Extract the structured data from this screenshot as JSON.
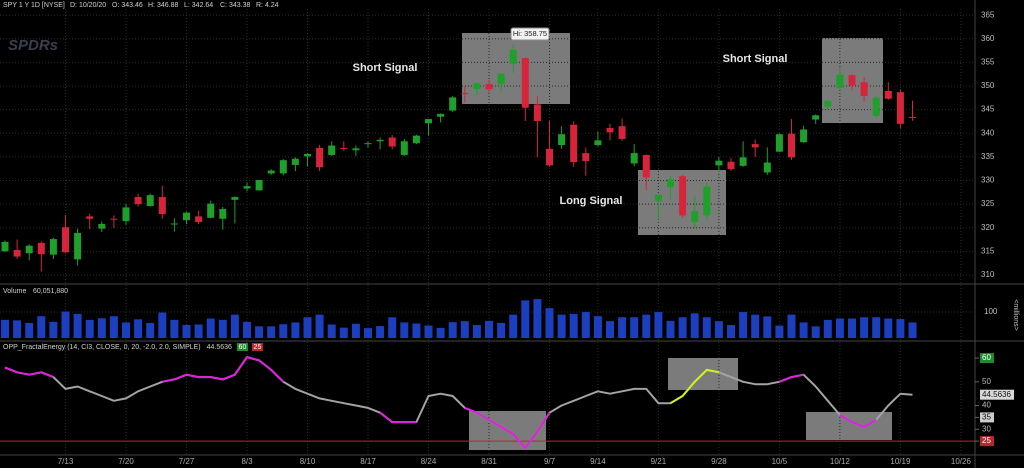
{
  "chart_data": [
    {
      "type": "candlestick",
      "title": "SPY 1 Y 1D [NYSE]",
      "readout": [
        "D: 10/20/20",
        "O: 343.46",
        "H: 346.88",
        "L: 342.64",
        "C: 343.38",
        "R: 4.24"
      ],
      "logo": "SPDRs",
      "up_color": "#1fa02a",
      "down_color": "#d8243a",
      "grid": true,
      "ylim": [
        308.3,
        366.3
      ],
      "yticks": [
        310,
        315,
        320,
        325,
        330,
        335,
        340,
        345,
        350,
        355,
        360,
        365
      ],
      "open": [
        315.0,
        315.3,
        314.6,
        316.8,
        314.3,
        320.1,
        313.3,
        322.4,
        319.8,
        321.9,
        321.4,
        326.5,
        324.6,
        326.5,
        320.9,
        321.6,
        322.4,
        322.1,
        321.9,
        325.9,
        328.3,
        327.9,
        331.5,
        331.5,
        333.3,
        335.1,
        336.9,
        335.4,
        336.9,
        336.4,
        337.9,
        338.3,
        339.1,
        335.4,
        337.9,
        342.1,
        343.5,
        344.8,
        348.5,
        349.4,
        350.4,
        350.4,
        354.7,
        355.9,
        346.1,
        336.7,
        337.5,
        341.8,
        335.8,
        337.5,
        341.1,
        341.5,
        333.6,
        335.4,
        325.7,
        328.6,
        330.9,
        321.2,
        322.6,
        333.2,
        333.97,
        333.1,
        337.7,
        331.7,
        336.1,
        339.9,
        338.1,
        342.9,
        345.6,
        349.6,
        352.3,
        350.8,
        343.7,
        348.96,
        348.7,
        343.46,
        null,
        null,
        null,
        null
      ],
      "high": [
        317.3,
        317.5,
        316.5,
        317.1,
        317.9,
        322.7,
        319.8,
        323.0,
        321.3,
        322.6,
        325.1,
        327.2,
        327.2,
        328.9,
        321.99,
        323.4,
        323.6,
        325.7,
        324.4,
        326.6,
        329.6,
        330.1,
        332.4,
        334.5,
        334.9,
        335.8,
        337.5,
        338.3,
        338.3,
        337.4,
        338.3,
        339.1,
        339.6,
        338.8,
        339.7,
        343.0,
        344.2,
        347.9,
        349.9,
        350.7,
        351.3,
        352.7,
        358.75,
        356.0,
        347.8,
        342.6,
        341.5,
        342.5,
        336.97,
        340.4,
        342.0,
        343.1,
        337.7,
        335.5,
        327.1,
        330.9,
        331.2,
        326.8,
        329.6,
        334.96,
        334.8,
        338.3,
        338.7,
        337.0,
        339.96,
        342.98,
        341.6,
        344.0,
        347.0,
        354.0,
        352.5,
        351.9,
        348.0,
        350.8,
        349.3,
        346.88,
        null,
        null,
        null,
        null
      ],
      "low": [
        314.9,
        313.4,
        313.1,
        310.7,
        313.4,
        314.6,
        312.0,
        319.7,
        319.1,
        319.9,
        320.6,
        324.5,
        324.5,
        321.9,
        319.2,
        320.8,
        320.8,
        322.0,
        319.6,
        320.9,
        327.7,
        327.9,
        331.2,
        331.1,
        332.0,
        332.9,
        332.0,
        335.2,
        336.3,
        335.2,
        336.9,
        336.6,
        336.6,
        335.2,
        337.7,
        339.5,
        342.3,
        344.5,
        346.5,
        348.1,
        348.6,
        348.7,
        352.8,
        342.6,
        334.9,
        332.9,
        336.7,
        332.9,
        331.0,
        337.2,
        338.5,
        338.4,
        333.0,
        327.97,
        321.7,
        325.9,
        322.1,
        319.8,
        321.6,
        331.6,
        332.0,
        332.9,
        335.0,
        331.2,
        336.0,
        334.4,
        337.98,
        341.99,
        344.9,
        349.1,
        349.1,
        346.7,
        343.1,
        347.1,
        341.0,
        342.64,
        null,
        null,
        null,
        null
      ],
      "close": [
        317.0,
        313.9,
        316.2,
        314.4,
        317.6,
        314.8,
        318.9,
        321.9,
        320.8,
        321.7,
        324.3,
        325.0,
        326.9,
        322.9,
        320.9,
        323.2,
        321.2,
        325.1,
        323.96,
        326.5,
        328.8,
        330.1,
        332.1,
        334.3,
        334.6,
        335.6,
        332.8,
        337.4,
        336.8,
        336.8,
        337.9,
        338.6,
        337.2,
        338.3,
        339.5,
        343.0,
        344.1,
        347.6,
        348.3,
        350.6,
        349.3,
        352.6,
        357.7,
        345.4,
        342.6,
        333.2,
        339.8,
        333.9,
        334.1,
        338.5,
        340.2,
        338.8,
        335.8,
        330.65,
        326.97,
        330.3,
        322.6,
        323.5,
        328.7,
        334.2,
        332.4,
        334.9,
        337.0,
        333.8,
        339.8,
        334.9,
        340.8,
        343.8,
        346.85,
        352.4,
        350.1,
        347.9,
        347.5,
        347.3,
        342.0,
        343.38,
        null,
        null,
        null,
        null
      ],
      "annotations": [
        "Short Signal",
        "Hi: 358.75",
        "Long Signal",
        "Short Signal"
      ]
    },
    {
      "type": "bar",
      "title": "Volume",
      "readout": "60,051,880",
      "y_unit_label": "<millions>",
      "color": "#1c3fbf",
      "ylim": [
        0,
        185
      ],
      "yticks": [
        100
      ],
      "values": [
        70,
        68,
        58,
        84,
        62,
        102,
        93,
        70,
        76,
        84,
        60,
        72,
        58,
        98,
        70,
        50,
        52,
        75,
        70,
        90,
        62,
        45,
        45,
        53,
        60,
        80,
        90,
        52,
        40,
        55,
        38,
        46,
        80,
        60,
        56,
        48,
        39,
        61,
        65,
        50,
        66,
        58,
        90,
        145,
        150,
        115,
        90,
        93,
        100,
        84,
        65,
        80,
        80,
        90,
        100,
        66,
        80,
        95,
        80,
        65,
        50,
        100,
        90,
        83,
        48,
        90,
        60,
        45,
        70,
        75,
        75,
        80,
        80,
        75,
        73,
        60.05188,
        null,
        null,
        null,
        null
      ]
    },
    {
      "type": "line",
      "title": "OPP_FractalEnergy (14, CI3, CLOSE, 0, 20, -2.0, 2.0, SIMPLE)",
      "readout": "44.5636",
      "level_tags": [
        {
          "text": "60",
          "color": "#1e8c2e"
        },
        {
          "text": "25",
          "color": "#b8262f"
        }
      ],
      "ylim": [
        20,
        63.4
      ],
      "yticks": [
        25,
        30,
        35,
        40,
        50,
        60
      ],
      "tick_box_colors": [
        "#b8262f",
        null,
        "#cccccc",
        null,
        null,
        "#1e8c2e"
      ],
      "reference_line": {
        "value": 25,
        "color": "#b8262f"
      },
      "categories": [
        null,
        null,
        null,
        null,
        null,
        "7/13",
        null,
        null,
        null,
        null,
        "7/20",
        null,
        null,
        null,
        null,
        "7/27",
        null,
        null,
        null,
        null,
        "8/3",
        null,
        null,
        null,
        null,
        "8/10",
        null,
        null,
        null,
        null,
        "8/17",
        null,
        null,
        null,
        null,
        "8/24",
        null,
        null,
        null,
        null,
        "8/31",
        null,
        null,
        null,
        null,
        "9/7",
        null,
        null,
        null,
        "9/14",
        null,
        null,
        null,
        null,
        "9/21",
        null,
        null,
        null,
        null,
        "9/28",
        null,
        null,
        null,
        null,
        "10/5",
        null,
        null,
        null,
        null,
        "10/12",
        null,
        null,
        null,
        null,
        "10/19",
        null,
        null,
        null,
        null,
        "10/26"
      ],
      "series": [
        {
          "color": "#a3a3a3",
          "values": [
            56,
            54,
            53,
            54,
            52,
            47,
            48,
            46,
            44,
            42,
            43,
            46,
            48,
            50,
            51,
            53,
            52,
            52,
            51,
            53,
            60.4,
            59,
            55,
            50,
            47,
            45,
            43,
            42,
            41,
            40,
            39,
            37,
            33,
            33,
            33,
            44,
            45,
            44,
            39,
            37,
            34,
            31,
            28,
            22,
            29,
            37,
            40,
            42,
            44,
            46,
            45,
            46,
            47,
            47,
            41,
            41,
            44,
            50,
            55,
            54,
            52,
            50,
            49,
            49,
            50,
            52,
            53,
            48,
            42,
            36,
            33,
            31,
            34,
            40,
            45,
            44.5636,
            null,
            null,
            null,
            null
          ]
        },
        {
          "color": "#e21fe0",
          "values": [
            56,
            54,
            53,
            54,
            52,
            null,
            null,
            null,
            null,
            null,
            null,
            null,
            null,
            50,
            51,
            53,
            52,
            52,
            51,
            53,
            60.4,
            59,
            55,
            50,
            null,
            null,
            null,
            null,
            null,
            null,
            null,
            37,
            33,
            33,
            33,
            null,
            null,
            null,
            39,
            37,
            34,
            31,
            28,
            22,
            29,
            37,
            null,
            null,
            null,
            null,
            null,
            null,
            null,
            null,
            null,
            null,
            null,
            null,
            null,
            null,
            null,
            null,
            null,
            null,
            50,
            52,
            53,
            null,
            null,
            36,
            33,
            31,
            34,
            null,
            null,
            null,
            null,
            null,
            null,
            null
          ]
        },
        {
          "color": "#d4f01c",
          "values": [
            null,
            null,
            null,
            null,
            null,
            null,
            null,
            null,
            null,
            null,
            null,
            null,
            null,
            null,
            null,
            null,
            null,
            null,
            null,
            null,
            null,
            null,
            null,
            null,
            null,
            null,
            null,
            null,
            null,
            null,
            null,
            null,
            null,
            null,
            null,
            null,
            null,
            null,
            null,
            null,
            null,
            null,
            null,
            null,
            null,
            null,
            null,
            null,
            null,
            null,
            null,
            null,
            null,
            null,
            null,
            41,
            44,
            50,
            55,
            54,
            null,
            null,
            null,
            null,
            null,
            null,
            null,
            null,
            null,
            null,
            null,
            null,
            null,
            null,
            null,
            null,
            null,
            null,
            null,
            null
          ]
        }
      ]
    }
  ]
}
